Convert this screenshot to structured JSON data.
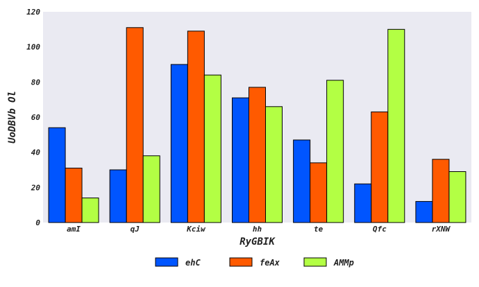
{
  "chart_data": {
    "type": "bar",
    "xlabel": "RyGBIK",
    "ylabel": "UoDBVb Ol",
    "ylim": [
      0,
      120
    ],
    "yticks": [
      0,
      20,
      40,
      60,
      80,
      100,
      120
    ],
    "categories": [
      "amI",
      "qJ",
      "Kciw",
      "hh",
      "te",
      "Qfc",
      "rXNW"
    ],
    "series": [
      {
        "name": "ehC",
        "color": "#0055ff",
        "values": [
          54,
          30,
          90,
          71,
          47,
          22,
          12
        ]
      },
      {
        "name": "feAx",
        "color": "#ff5a00",
        "values": [
          31,
          111,
          109,
          77,
          34,
          63,
          36
        ]
      },
      {
        "name": "AMMp",
        "color": "#b3ff44",
        "values": [
          14,
          38,
          84,
          66,
          81,
          110,
          29
        ]
      }
    ],
    "grid": false,
    "legend": "bottom-center",
    "plot_background": "#eaeaf2"
  }
}
